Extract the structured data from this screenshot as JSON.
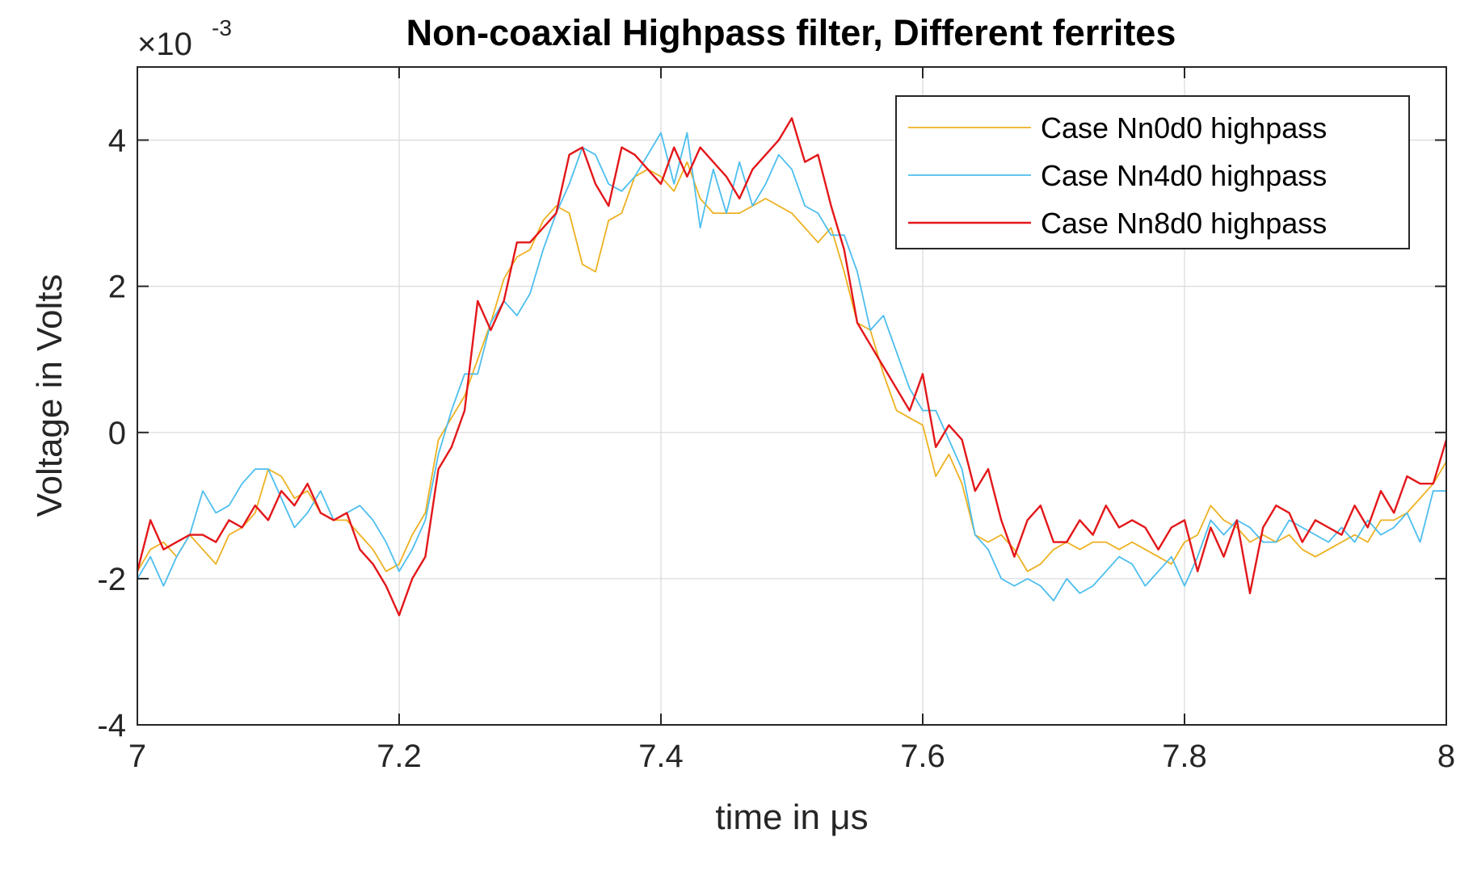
{
  "chart_data": {
    "type": "line",
    "title": "Non-coaxial Highpass filter, Different ferrites",
    "xlabel": "time in μs",
    "ylabel": "Voltage in Volts",
    "y_exponent_label": "×10",
    "y_exponent_power": "-3",
    "xlim": [
      7,
      8
    ],
    "ylim": [
      -4,
      5
    ],
    "x_ticks": [
      7,
      7.2,
      7.4,
      7.6,
      7.8,
      8
    ],
    "x_tick_labels": [
      "7",
      "7.2",
      "7.4",
      "7.6",
      "7.8",
      "8"
    ],
    "y_ticks": [
      -4,
      -2,
      0,
      2,
      4
    ],
    "y_tick_labels": [
      "-4",
      "-2",
      "0",
      "2",
      "4"
    ],
    "y_units_scale": "×10^-3 V",
    "grid": true,
    "legend_position": "top-right",
    "series": [
      {
        "name": "Case Nn0d0 highpass",
        "color": "#EDB120",
        "x": [
          7.0,
          7.01,
          7.02,
          7.03,
          7.04,
          7.05,
          7.06,
          7.07,
          7.08,
          7.09,
          7.1,
          7.11,
          7.12,
          7.13,
          7.14,
          7.15,
          7.16,
          7.17,
          7.18,
          7.19,
          7.2,
          7.21,
          7.22,
          7.23,
          7.24,
          7.25,
          7.26,
          7.27,
          7.28,
          7.29,
          7.3,
          7.31,
          7.32,
          7.33,
          7.34,
          7.35,
          7.36,
          7.37,
          7.38,
          7.39,
          7.4,
          7.41,
          7.42,
          7.43,
          7.44,
          7.45,
          7.46,
          7.47,
          7.48,
          7.49,
          7.5,
          7.51,
          7.52,
          7.53,
          7.54,
          7.55,
          7.56,
          7.57,
          7.58,
          7.59,
          7.6,
          7.61,
          7.62,
          7.63,
          7.64,
          7.65,
          7.66,
          7.67,
          7.68,
          7.69,
          7.7,
          7.71,
          7.72,
          7.73,
          7.74,
          7.75,
          7.76,
          7.77,
          7.78,
          7.79,
          7.8,
          7.81,
          7.82,
          7.83,
          7.84,
          7.85,
          7.86,
          7.87,
          7.88,
          7.89,
          7.9,
          7.91,
          7.92,
          7.93,
          7.94,
          7.95,
          7.96,
          7.97,
          7.98,
          7.99,
          8.0
        ],
        "y": [
          -1.9,
          -1.6,
          -1.5,
          -1.7,
          -1.4,
          -1.6,
          -1.8,
          -1.4,
          -1.3,
          -1.1,
          -0.5,
          -0.6,
          -0.9,
          -0.8,
          -1.1,
          -1.2,
          -1.2,
          -1.4,
          -1.6,
          -1.9,
          -1.8,
          -1.4,
          -1.1,
          -0.1,
          0.2,
          0.5,
          1.0,
          1.5,
          2.1,
          2.4,
          2.5,
          2.9,
          3.1,
          3.0,
          2.3,
          2.2,
          2.9,
          3.0,
          3.5,
          3.6,
          3.5,
          3.3,
          3.7,
          3.2,
          3.0,
          3.0,
          3.0,
          3.1,
          3.2,
          3.1,
          3.0,
          2.8,
          2.6,
          2.8,
          2.2,
          1.5,
          1.4,
          0.8,
          0.3,
          0.2,
          0.1,
          -0.6,
          -0.3,
          -0.7,
          -1.4,
          -1.5,
          -1.4,
          -1.6,
          -1.9,
          -1.8,
          -1.6,
          -1.5,
          -1.6,
          -1.5,
          -1.5,
          -1.6,
          -1.5,
          -1.6,
          -1.7,
          -1.8,
          -1.5,
          -1.4,
          -1.0,
          -1.2,
          -1.3,
          -1.5,
          -1.4,
          -1.5,
          -1.4,
          -1.6,
          -1.7,
          -1.6,
          -1.5,
          -1.4,
          -1.5,
          -1.2,
          -1.2,
          -1.1,
          -0.9,
          -0.7,
          -0.4
        ]
      },
      {
        "name": "Case Nn4d0 highpass",
        "color": "#4DBEEE",
        "x": [
          7.0,
          7.01,
          7.02,
          7.03,
          7.04,
          7.05,
          7.06,
          7.07,
          7.08,
          7.09,
          7.1,
          7.11,
          7.12,
          7.13,
          7.14,
          7.15,
          7.16,
          7.17,
          7.18,
          7.19,
          7.2,
          7.21,
          7.22,
          7.23,
          7.24,
          7.25,
          7.26,
          7.27,
          7.28,
          7.29,
          7.3,
          7.31,
          7.32,
          7.33,
          7.34,
          7.35,
          7.36,
          7.37,
          7.38,
          7.39,
          7.4,
          7.41,
          7.42,
          7.43,
          7.44,
          7.45,
          7.46,
          7.47,
          7.48,
          7.49,
          7.5,
          7.51,
          7.52,
          7.53,
          7.54,
          7.55,
          7.56,
          7.57,
          7.58,
          7.59,
          7.6,
          7.61,
          7.62,
          7.63,
          7.64,
          7.65,
          7.66,
          7.67,
          7.68,
          7.69,
          7.7,
          7.71,
          7.72,
          7.73,
          7.74,
          7.75,
          7.76,
          7.77,
          7.78,
          7.79,
          7.8,
          7.81,
          7.82,
          7.83,
          7.84,
          7.85,
          7.86,
          7.87,
          7.88,
          7.89,
          7.9,
          7.91,
          7.92,
          7.93,
          7.94,
          7.95,
          7.96,
          7.97,
          7.98,
          7.99,
          8.0
        ],
        "y": [
          -2.0,
          -1.7,
          -2.1,
          -1.7,
          -1.4,
          -0.8,
          -1.1,
          -1.0,
          -0.7,
          -0.5,
          -0.5,
          -0.9,
          -1.3,
          -1.1,
          -0.8,
          -1.2,
          -1.1,
          -1.0,
          -1.2,
          -1.5,
          -1.9,
          -1.6,
          -1.2,
          -0.3,
          0.3,
          0.8,
          0.8,
          1.5,
          1.8,
          1.6,
          1.9,
          2.5,
          3.0,
          3.4,
          3.9,
          3.8,
          3.4,
          3.3,
          3.5,
          3.8,
          4.1,
          3.4,
          4.1,
          2.8,
          3.6,
          3.0,
          3.7,
          3.1,
          3.4,
          3.8,
          3.6,
          3.1,
          3.0,
          2.7,
          2.7,
          2.2,
          1.4,
          1.6,
          1.1,
          0.6,
          0.3,
          0.3,
          -0.1,
          -0.5,
          -1.4,
          -1.6,
          -2.0,
          -2.1,
          -2.0,
          -2.1,
          -2.3,
          -2.0,
          -2.2,
          -2.1,
          -1.9,
          -1.7,
          -1.8,
          -2.1,
          -1.9,
          -1.7,
          -2.1,
          -1.7,
          -1.2,
          -1.4,
          -1.2,
          -1.3,
          -1.5,
          -1.5,
          -1.2,
          -1.3,
          -1.4,
          -1.5,
          -1.3,
          -1.5,
          -1.2,
          -1.4,
          -1.3,
          -1.1,
          -1.5,
          -0.8,
          -0.8
        ]
      },
      {
        "name": "Case Nn8d0 highpass",
        "color": "#E3171A",
        "x": [
          7.0,
          7.01,
          7.02,
          7.03,
          7.04,
          7.05,
          7.06,
          7.07,
          7.08,
          7.09,
          7.1,
          7.11,
          7.12,
          7.13,
          7.14,
          7.15,
          7.16,
          7.17,
          7.18,
          7.19,
          7.2,
          7.21,
          7.22,
          7.23,
          7.24,
          7.25,
          7.26,
          7.27,
          7.28,
          7.29,
          7.3,
          7.31,
          7.32,
          7.33,
          7.34,
          7.35,
          7.36,
          7.37,
          7.38,
          7.39,
          7.4,
          7.41,
          7.42,
          7.43,
          7.44,
          7.45,
          7.46,
          7.47,
          7.48,
          7.49,
          7.5,
          7.51,
          7.52,
          7.53,
          7.54,
          7.55,
          7.56,
          7.57,
          7.58,
          7.59,
          7.6,
          7.61,
          7.62,
          7.63,
          7.64,
          7.65,
          7.66,
          7.67,
          7.68,
          7.69,
          7.7,
          7.71,
          7.72,
          7.73,
          7.74,
          7.75,
          7.76,
          7.77,
          7.78,
          7.79,
          7.8,
          7.81,
          7.82,
          7.83,
          7.84,
          7.85,
          7.86,
          7.87,
          7.88,
          7.89,
          7.9,
          7.91,
          7.92,
          7.93,
          7.94,
          7.95,
          7.96,
          7.97,
          7.98,
          7.99,
          8.0
        ],
        "y": [
          -1.9,
          -1.2,
          -1.6,
          -1.5,
          -1.4,
          -1.4,
          -1.5,
          -1.2,
          -1.3,
          -1.0,
          -1.2,
          -0.8,
          -1.0,
          -0.7,
          -1.1,
          -1.2,
          -1.1,
          -1.6,
          -1.8,
          -2.1,
          -2.5,
          -2.0,
          -1.7,
          -0.5,
          -0.2,
          0.3,
          1.8,
          1.4,
          1.8,
          2.6,
          2.6,
          2.8,
          3.0,
          3.8,
          3.9,
          3.4,
          3.1,
          3.9,
          3.8,
          3.6,
          3.4,
          3.9,
          3.5,
          3.9,
          3.7,
          3.5,
          3.2,
          3.6,
          3.8,
          4.0,
          4.3,
          3.7,
          3.8,
          3.1,
          2.5,
          1.5,
          1.2,
          0.9,
          0.6,
          0.3,
          0.8,
          -0.2,
          0.1,
          -0.1,
          -0.8,
          -0.5,
          -1.2,
          -1.7,
          -1.2,
          -1.0,
          -1.5,
          -1.5,
          -1.2,
          -1.4,
          -1.0,
          -1.3,
          -1.2,
          -1.3,
          -1.6,
          -1.3,
          -1.2,
          -1.9,
          -1.3,
          -1.7,
          -1.2,
          -2.2,
          -1.3,
          -1.0,
          -1.1,
          -1.5,
          -1.2,
          -1.3,
          -1.4,
          -1.0,
          -1.3,
          -0.8,
          -1.1,
          -0.6,
          -0.7,
          -0.7,
          -0.1
        ]
      }
    ]
  }
}
